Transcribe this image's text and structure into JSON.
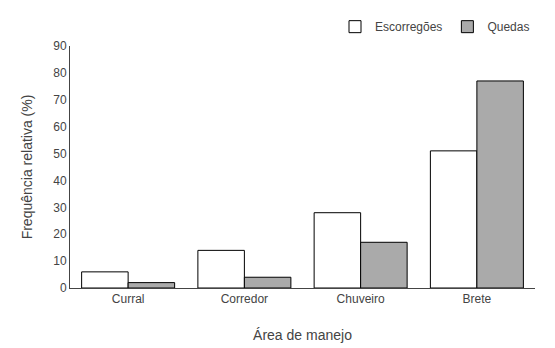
{
  "chart_data": {
    "type": "bar",
    "categories": [
      "Curral",
      "Corredor",
      "Chuveiro",
      "Brete"
    ],
    "series": [
      {
        "name": "Escorregões",
        "color": "#ffffff",
        "values": [
          6,
          14,
          28,
          51
        ]
      },
      {
        "name": "Quedas",
        "color": "#aaaaaa",
        "values": [
          2,
          4,
          17,
          77
        ]
      }
    ],
    "xlabel": "Área de manejo",
    "ylabel": "Frequência relativa (%)",
    "ylim": [
      0,
      90
    ],
    "yticks": [
      0,
      10,
      20,
      30,
      40,
      50,
      60,
      70,
      80,
      90
    ],
    "grid": false,
    "legend": "upper right"
  }
}
